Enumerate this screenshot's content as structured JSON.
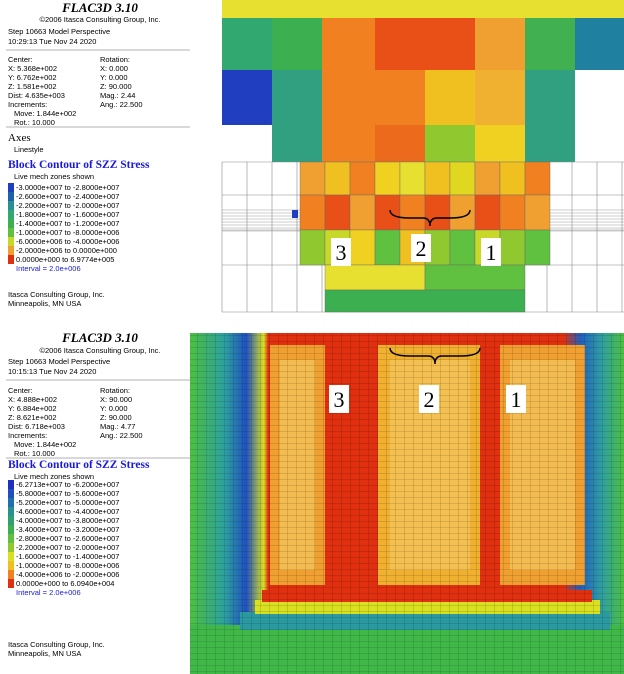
{
  "panels": [
    {
      "header": {
        "title": "FLAC3D 3.10",
        "copyright": "©2006 Itasca Consulting Group, Inc.",
        "step": "Step 10663  Model Perspective",
        "time": "10:29:13 Tue Nov 24 2020"
      },
      "view": [
        [
          "Center:",
          "Rotation:"
        ],
        [
          "X: 5.368e+002",
          "X:   0.000"
        ],
        [
          "Y: 6.762e+002",
          "Y:   0.000"
        ],
        [
          "Z: 1.581e+002",
          "Z:  90.000"
        ],
        [
          "Dist: 4.635e+003",
          "Mag.:     2.44"
        ],
        [
          "Increments:",
          "Ang.:  22.500"
        ],
        [
          "Move:  1.844e+002"
        ],
        [
          "Rot.:  10.000"
        ]
      ],
      "axes": "Axes",
      "linestyle": "Linestyle",
      "contour_title": "Block Contour of SZZ Stress",
      "contour_note": "Live mech zones shown",
      "legend": [
        "-3.0000e+007 to -2.8000e+007",
        "-2.6000e+007 to -2.4000e+007",
        "-2.2000e+007 to -2.0000e+007",
        "-1.8000e+007 to -1.6000e+007",
        "-1.4000e+007 to -1.2000e+007",
        "-1.0000e+007 to -8.0000e+006",
        "-6.0000e+006 to -4.0000e+006",
        "-2.0000e+006 to 0.0000e+000",
        "0.0000e+000 to 6.9774e+005"
      ],
      "interval": "Interval = 2.0e+006",
      "footer": [
        "Itasca Consulting Group, Inc.",
        "Minneapolis, MN  USA"
      ],
      "labels": [
        "3",
        "2",
        "1"
      ]
    },
    {
      "header": {
        "title": "FLAC3D 3.10",
        "copyright": "©2006 Itasca Consulting Group, Inc.",
        "step": "Step 10663  Model Perspective",
        "time": "10:15:13 Tue Nov 24 2020"
      },
      "view": [
        [
          "Center:",
          "Rotation:"
        ],
        [
          "X: 4.888e+002",
          "X:  90.000"
        ],
        [
          "Y: 6.884e+002",
          "Y:   0.000"
        ],
        [
          "Z: 8.621e+002",
          "Z:  90.000"
        ],
        [
          "Dist: 6.718e+003",
          "Mag.:     4.77"
        ],
        [
          "Increments:",
          "Ang.:  22.500"
        ],
        [
          "Move:  1.844e+002"
        ],
        [
          "Rot.:  10.000"
        ]
      ],
      "contour_title": "Block Contour of SZZ Stress",
      "contour_note": "Live mech zones shown",
      "legend": [
        "-6.2713e+007 to -6.2000e+007",
        "-5.8000e+007 to -5.6000e+007",
        "-5.2000e+007 to -5.0000e+007",
        "-4.6000e+007 to -4.4000e+007",
        "-4.0000e+007 to -3.8000e+007",
        "-3.4000e+007 to -3.2000e+007",
        "-2.8000e+007 to -2.6000e+007",
        "-2.2000e+007 to -2.0000e+007",
        "-1.6000e+007 to -1.4000e+007",
        "-1.0000e+007 to -8.0000e+006",
        "-4.0000e+006 to -2.0000e+006",
        "0.0000e+000 to 6.0940e+004"
      ],
      "interval": "Interval = 2.0e+006",
      "footer": [
        "Itasca Consulting Group, Inc.",
        "Minneapolis, MN  USA"
      ],
      "labels": [
        "3",
        "2",
        "1"
      ]
    }
  ]
}
